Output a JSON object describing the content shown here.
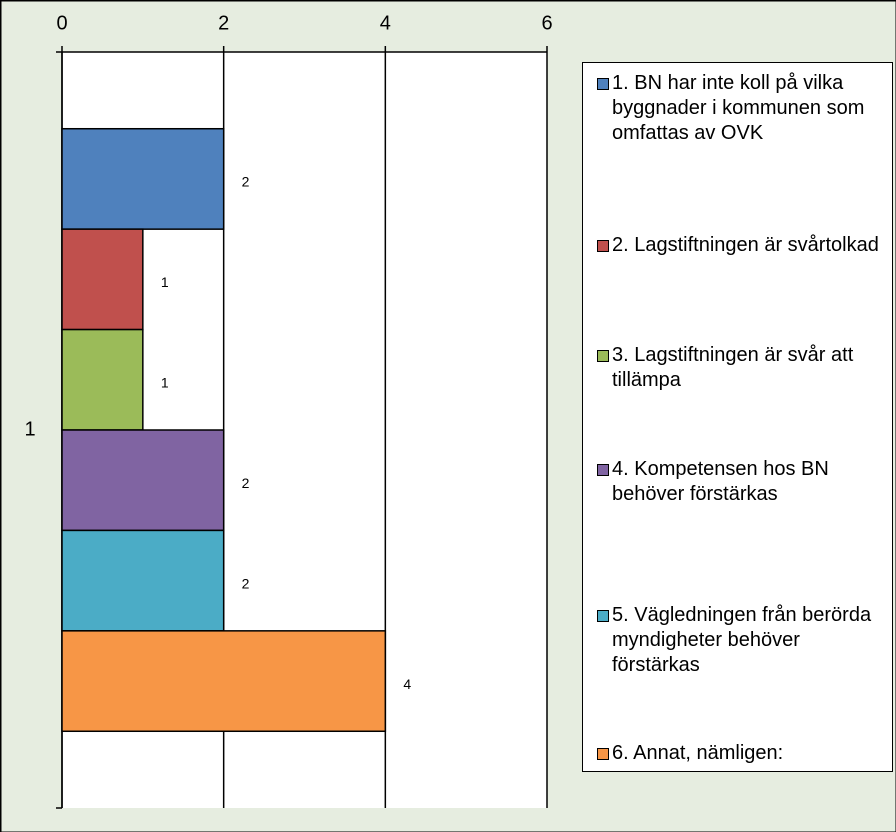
{
  "chart_data": {
    "type": "barh",
    "categories": [
      "1"
    ],
    "series": [
      {
        "name": "1. BN har inte koll på vilka byggnader i kommunen som omfattas av OVK",
        "color": "#4f81bd",
        "values": [
          2
        ]
      },
      {
        "name": "2. Lagstiftningen är svårtolkad",
        "color": "#c0504d",
        "values": [
          1
        ]
      },
      {
        "name": "3. Lagstiftningen är svår att tillämpa",
        "color": "#9bbb59",
        "values": [
          1
        ]
      },
      {
        "name": "4. Kompetensen hos BN behöver förstärkas",
        "color": "#8064a2",
        "values": [
          2
        ]
      },
      {
        "name": "5. Vägledningen från berörda myndigheter behöver förstärkas",
        "color": "#4bacc6",
        "values": [
          2
        ]
      },
      {
        "name": "6. Annat, nämligen:",
        "color": "#f79646",
        "values": [
          4
        ]
      }
    ],
    "xlim": [
      0,
      6
    ],
    "xticks": [
      0,
      2,
      4,
      6
    ],
    "grid": true,
    "legend": "right"
  }
}
